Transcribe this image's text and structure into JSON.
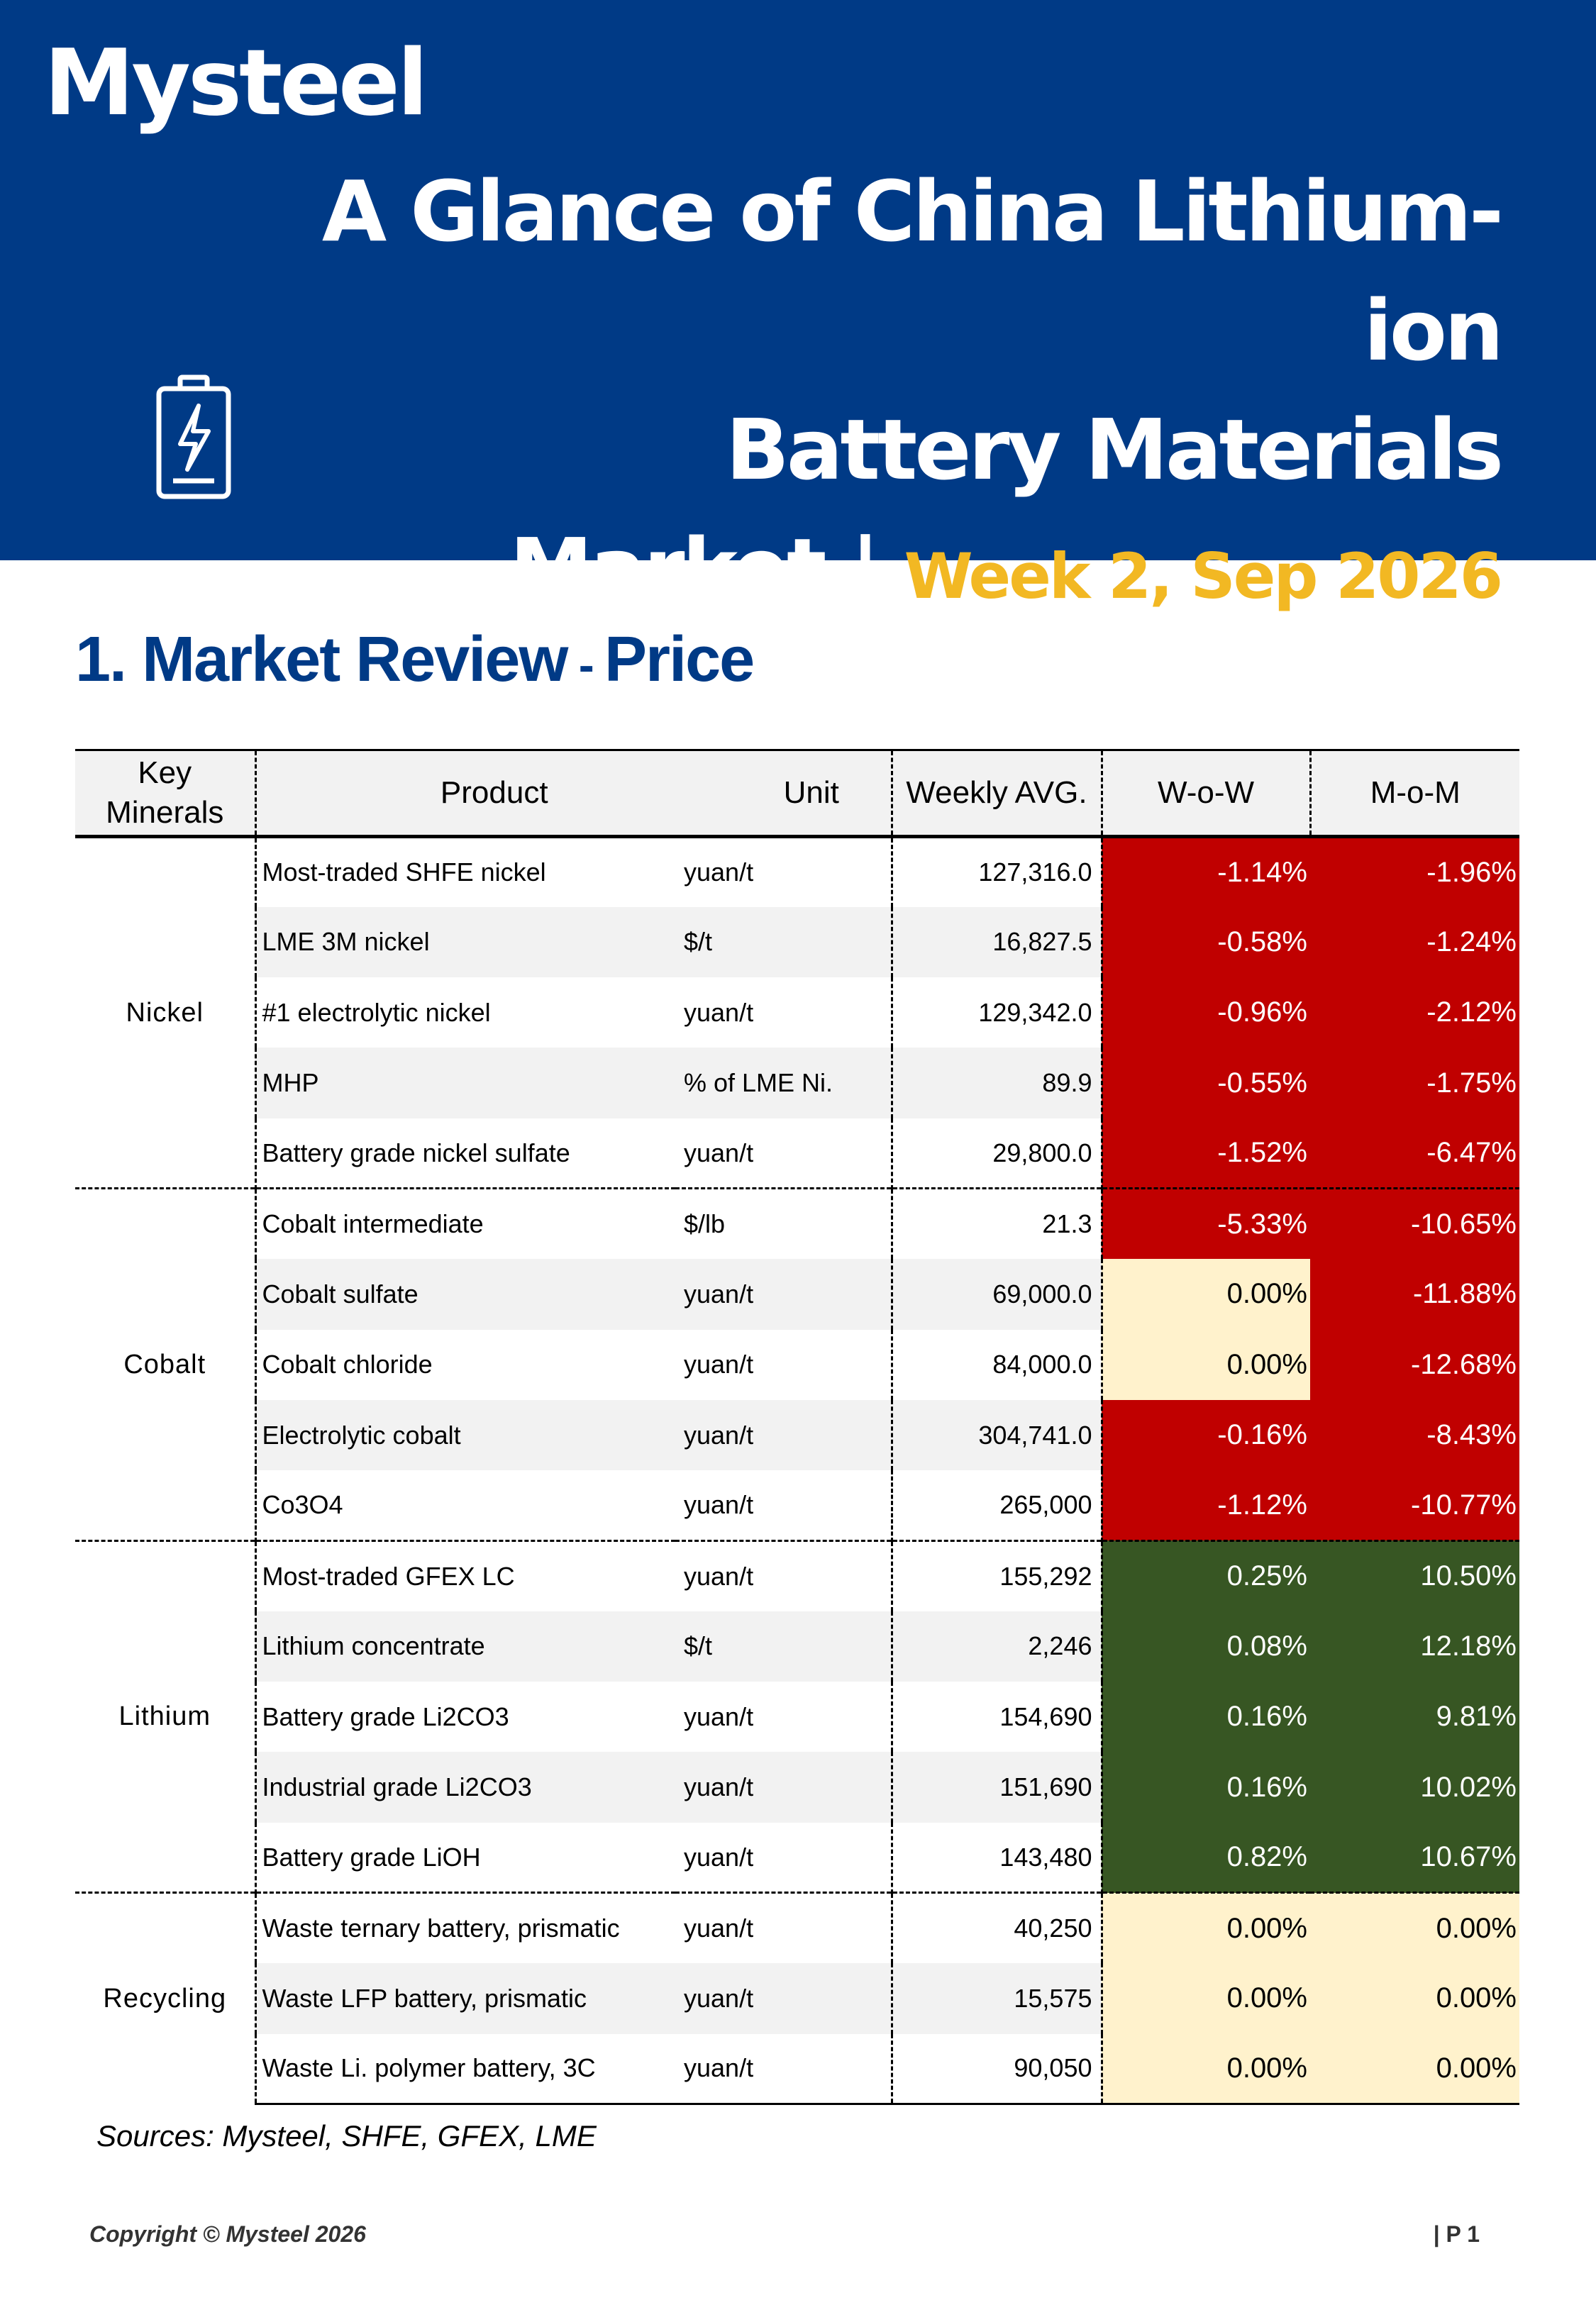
{
  "header": {
    "logo": "Mysteel",
    "title_line1": "A Glance of China Lithium-ion",
    "title_line2": "Battery Materials",
    "title_line3": "Market |",
    "week": "Week 2, Sep 2026",
    "icon": "battery-bolt-icon"
  },
  "section": {
    "number_title": "1. Market Review",
    "dash": " - ",
    "subtitle": "Price"
  },
  "table": {
    "headers": {
      "mineral": "Key Minerals",
      "product": "Product",
      "unit": "Unit",
      "weekly_avg": "Weekly AVG.",
      "wow": "W-o-W",
      "mom": "M-o-M"
    },
    "groups": [
      {
        "mineral": "Nickel",
        "rows": [
          {
            "product": "Most-traded SHFE nickel",
            "unit": "yuan/t",
            "avg": "127,316.0",
            "wow": "-1.14%",
            "mom": "-1.96%"
          },
          {
            "product": "LME 3M nickel",
            "unit": "$/t",
            "avg": "16,827.5",
            "wow": "-0.58%",
            "mom": "-1.24%"
          },
          {
            "product": "#1 electrolytic nickel",
            "unit": "yuan/t",
            "avg": "129,342.0",
            "wow": "-0.96%",
            "mom": "-2.12%"
          },
          {
            "product": "MHP",
            "unit": "% of LME Ni.",
            "avg": "89.9",
            "wow": "-0.55%",
            "mom": "-1.75%"
          },
          {
            "product": "Battery grade nickel sulfate",
            "unit": "yuan/t",
            "avg": "29,800.0",
            "wow": "-1.52%",
            "mom": "-6.47%"
          }
        ]
      },
      {
        "mineral": "Cobalt",
        "rows": [
          {
            "product": "Cobalt intermediate",
            "unit": "$/lb",
            "avg": "21.3",
            "wow": "-5.33%",
            "mom": "-10.65%"
          },
          {
            "product": "Cobalt sulfate",
            "unit": "yuan/t",
            "avg": "69,000.0",
            "wow": "0.00%",
            "mom": "-11.88%"
          },
          {
            "product": "Cobalt chloride",
            "unit": "yuan/t",
            "avg": "84,000.0",
            "wow": "0.00%",
            "mom": "-12.68%"
          },
          {
            "product": "Electrolytic cobalt",
            "unit": "yuan/t",
            "avg": "304,741.0",
            "wow": "-0.16%",
            "mom": "-8.43%"
          },
          {
            "product": "Co3O4",
            "unit": "yuan/t",
            "avg": "265,000",
            "wow": "-1.12%",
            "mom": "-10.77%"
          }
        ]
      },
      {
        "mineral": "Lithium",
        "rows": [
          {
            "product": "Most-traded GFEX LC",
            "unit": "yuan/t",
            "avg": "155,292",
            "wow": "0.25%",
            "mom": "10.50%"
          },
          {
            "product": "Lithium concentrate",
            "unit": "$/t",
            "avg": "2,246",
            "wow": "0.08%",
            "mom": "12.18%"
          },
          {
            "product": "Battery grade Li2CO3",
            "unit": "yuan/t",
            "avg": "154,690",
            "wow": "0.16%",
            "mom": "9.81%"
          },
          {
            "product": "Industrial grade Li2CO3",
            "unit": "yuan/t",
            "avg": "151,690",
            "wow": "0.16%",
            "mom": "10.02%"
          },
          {
            "product": "Battery grade LiOH",
            "unit": "yuan/t",
            "avg": "143,480",
            "wow": "0.82%",
            "mom": "10.67%"
          }
        ]
      },
      {
        "mineral": "Recycling",
        "rows": [
          {
            "product": "Waste ternary battery, prismatic",
            "unit": "yuan/t",
            "avg": "40,250",
            "wow": "0.00%",
            "mom": "0.00%"
          },
          {
            "product": "Waste LFP battery, prismatic",
            "unit": "yuan/t",
            "avg": "15,575",
            "wow": "0.00%",
            "mom": "0.00%"
          },
          {
            "product": "Waste Li. polymer battery, 3C",
            "unit": "yuan/t",
            "avg": "90,050",
            "wow": "0.00%",
            "mom": "0.00%"
          }
        ]
      }
    ],
    "colors": {
      "negative": "#c00000",
      "positive": "#375623",
      "zero": "#fff2cc"
    }
  },
  "sources": "Sources: Mysteel, SHFE, GFEX, LME",
  "footer": {
    "copyright": "Copyright © Mysteel 2026",
    "page": "| P 1"
  }
}
